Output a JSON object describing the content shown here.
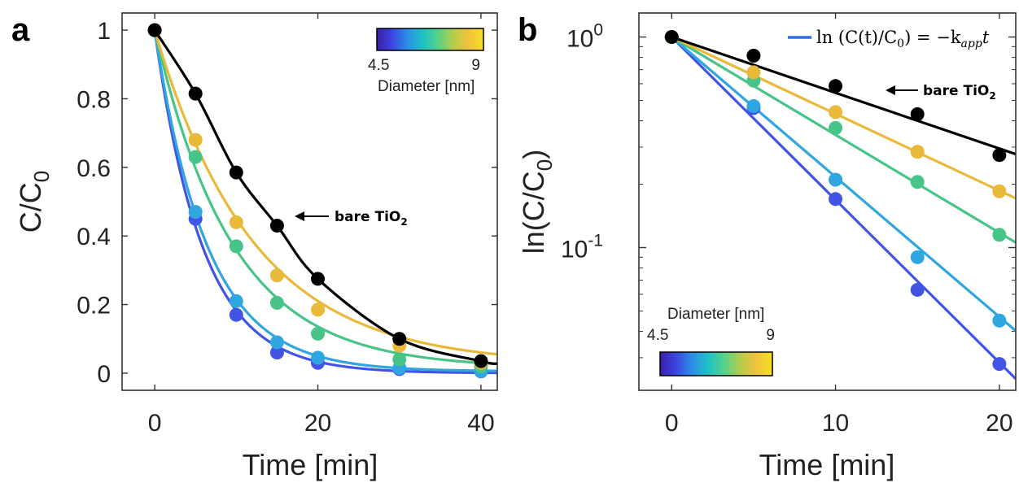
{
  "colors": {
    "series": [
      "#4254e6",
      "#2fa6df",
      "#47c488",
      "#e9b93a",
      "#000000"
    ],
    "colorbar": [
      "#3b1fa8",
      "#3a46e0",
      "#2c8fe6",
      "#1fc0c6",
      "#56d28a",
      "#b5cc4c",
      "#f1c23c",
      "#f7e021"
    ]
  },
  "chart_data": [
    {
      "type": "line",
      "panel": "a",
      "xlabel": "Time [min]",
      "ylabel_main": "C/C",
      "ylabel_sub": "0",
      "xlim": [
        -4,
        42
      ],
      "ylim": [
        -0.05,
        1.05
      ],
      "xticks": [
        "0",
        "20",
        "40"
      ],
      "xtick_values": [
        0,
        20,
        40
      ],
      "yticks": [
        "0",
        "0.2",
        "0.4",
        "0.6",
        "0.8",
        "1"
      ],
      "ytick_values": [
        0,
        0.2,
        0.4,
        0.6,
        0.8,
        1
      ],
      "series": [
        {
          "x": [
            0,
            5,
            10,
            15,
            20,
            30,
            40
          ],
          "y": [
            1,
            0.45,
            0.17,
            0.06,
            0.03,
            0.012,
            0.005
          ],
          "fit_k": 0.17,
          "fit_c": 0.0
        },
        {
          "x": [
            0,
            5,
            10,
            15,
            20,
            30,
            40
          ],
          "y": [
            1,
            0.47,
            0.21,
            0.09,
            0.045,
            0.015,
            0.006
          ],
          "fit_k": 0.155,
          "fit_c": 0.005
        },
        {
          "x": [
            0,
            5,
            10,
            15,
            20,
            30,
            40
          ],
          "y": [
            1,
            0.63,
            0.37,
            0.205,
            0.115,
            0.04,
            0.02
          ],
          "fit_k": 0.105,
          "fit_c": 0.015
        },
        {
          "x": [
            0,
            5,
            10,
            15,
            20,
            30,
            40
          ],
          "y": [
            1,
            0.68,
            0.44,
            0.285,
            0.185,
            0.08,
            0.03
          ],
          "fit_k": 0.083,
          "fit_c": 0.025
        },
        {
          "x": [
            0,
            5,
            10,
            15,
            20,
            30,
            40
          ],
          "y": [
            1,
            0.815,
            0.585,
            0.43,
            0.275,
            0.1,
            0.035
          ]
        }
      ],
      "annotation": {
        "text": "bare TiO",
        "sub": "2"
      },
      "colorbar": {
        "min_label": "4.5",
        "max_label": "9",
        "label": "Diameter [nm]"
      }
    },
    {
      "type": "line",
      "panel": "b",
      "scale": "log",
      "xlabel": "Time [min]",
      "ylabel_main": "ln(C/C",
      "ylabel_sub": "0",
      "ylabel_end": ")",
      "xlim": [
        -2,
        21
      ],
      "ylim": [
        0.021,
        1.3
      ],
      "xticks": [
        "0",
        "10",
        "20"
      ],
      "xtick_values": [
        0,
        10,
        20
      ],
      "yticks": [
        {
          "base": "10",
          "exp": "0",
          "value": 1
        },
        {
          "base": "10",
          "exp": "-1",
          "value": 0.1
        }
      ],
      "series": [
        {
          "x": [
            0,
            5,
            10,
            15,
            20
          ],
          "y": [
            1,
            0.46,
            0.17,
            0.063,
            0.028
          ],
          "k_app": 0.178
        },
        {
          "x": [
            0,
            5,
            10,
            15,
            20
          ],
          "y": [
            1,
            0.47,
            0.21,
            0.09,
            0.045
          ],
          "k_app": 0.153
        },
        {
          "x": [
            0,
            5,
            10,
            15,
            20
          ],
          "y": [
            1,
            0.62,
            0.37,
            0.205,
            0.115
          ],
          "k_app": 0.107
        },
        {
          "x": [
            0,
            5,
            10,
            15,
            20
          ],
          "y": [
            1,
            0.68,
            0.44,
            0.285,
            0.185
          ],
          "k_app": 0.084
        },
        {
          "x": [
            0,
            5,
            10,
            15,
            20
          ],
          "y": [
            1,
            0.815,
            0.585,
            0.43,
            0.275
          ],
          "k_app": 0.061
        }
      ],
      "legend": {
        "placement": "top-right",
        "text_pre": "ln (C(t)/C",
        "text_sub": "0",
        "text_mid": ") = −k",
        "text_sub2": "app",
        "text_end": "t"
      },
      "annotation": {
        "text": "bare TiO",
        "sub": "2"
      },
      "colorbar": {
        "min_label": "4.5",
        "max_label": "9",
        "label": "Diameter [nm]"
      }
    }
  ]
}
